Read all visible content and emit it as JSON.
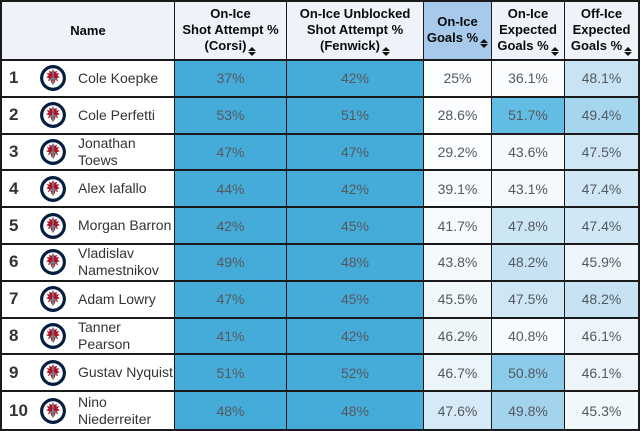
{
  "table": {
    "columns": [
      {
        "key": "name",
        "lines": [
          "Name"
        ],
        "sortable": false,
        "highlighted": false
      },
      {
        "key": "corsi",
        "lines": [
          "On-Ice",
          "Shot Attempt %",
          "(Corsi)"
        ],
        "sortable": true,
        "highlighted": false
      },
      {
        "key": "fenwick",
        "lines": [
          "On-Ice Unblocked",
          "Shot Attempt %",
          "(Fenwick)"
        ],
        "sortable": true,
        "highlighted": false
      },
      {
        "key": "goals",
        "lines": [
          "On-Ice",
          "Goals %"
        ],
        "sortable": true,
        "highlighted": true
      },
      {
        "key": "xgf-on",
        "lines": [
          "On-Ice",
          "Expected",
          "Goals %"
        ],
        "sortable": true,
        "highlighted": false
      },
      {
        "key": "xgf-off",
        "lines": [
          "Off-Ice",
          "Expected",
          "Goals %"
        ],
        "sortable": true,
        "highlighted": false
      }
    ],
    "icons": {
      "sort": "sort-arrows-icon",
      "team_logo": "winnipeg-jets-logo"
    },
    "colors": {
      "strong_blue": "#45acda",
      "header_bg": "#eff3f9",
      "header_highlight_bg": "#a6c9ec",
      "border": "#1a1a1a"
    },
    "rows": [
      {
        "rank": "1",
        "name": "Cole Koepke",
        "cells": [
          {
            "v": "37%",
            "bg": "#45acda"
          },
          {
            "v": "42%",
            "bg": "#45acda"
          },
          {
            "v": "25%",
            "bg": "#fcfdfe"
          },
          {
            "v": "36.1%",
            "bg": "#fafcfd"
          },
          {
            "v": "48.1%",
            "bg": "#c8e3f3"
          }
        ]
      },
      {
        "rank": "2",
        "name": "Cole Perfetti",
        "cells": [
          {
            "v": "53%",
            "bg": "#45acda"
          },
          {
            "v": "51%",
            "bg": "#45acda"
          },
          {
            "v": "28.6%",
            "bg": "#fcfdfe"
          },
          {
            "v": "51.7%",
            "bg": "#63bce3"
          },
          {
            "v": "49.4%",
            "bg": "#a6d5ee"
          }
        ]
      },
      {
        "rank": "3",
        "name": "Jonathan Toews",
        "cells": [
          {
            "v": "47%",
            "bg": "#45acda"
          },
          {
            "v": "47%",
            "bg": "#45acda"
          },
          {
            "v": "29.2%",
            "bg": "#fcfdfe"
          },
          {
            "v": "43.6%",
            "bg": "#f4f9fc"
          },
          {
            "v": "47.5%",
            "bg": "#cfe7f5"
          }
        ]
      },
      {
        "rank": "4",
        "name": "Alex Iafallo",
        "cells": [
          {
            "v": "44%",
            "bg": "#45acda"
          },
          {
            "v": "42%",
            "bg": "#45acda"
          },
          {
            "v": "39.1%",
            "bg": "#f8fbfd"
          },
          {
            "v": "43.1%",
            "bg": "#f5f9fc"
          },
          {
            "v": "47.4%",
            "bg": "#d0e8f5"
          }
        ]
      },
      {
        "rank": "5",
        "name": "Morgan Barron",
        "cells": [
          {
            "v": "42%",
            "bg": "#45acda"
          },
          {
            "v": "45%",
            "bg": "#45acda"
          },
          {
            "v": "41.7%",
            "bg": "#f6fafc"
          },
          {
            "v": "47.8%",
            "bg": "#cde6f4"
          },
          {
            "v": "47.4%",
            "bg": "#d0e8f5"
          }
        ]
      },
      {
        "rank": "6",
        "name": "Vladislav Namestnikov",
        "cells": [
          {
            "v": "49%",
            "bg": "#45acda"
          },
          {
            "v": "48%",
            "bg": "#45acda"
          },
          {
            "v": "43.8%",
            "bg": "#f4f9fc"
          },
          {
            "v": "48.2%",
            "bg": "#c7e3f3"
          },
          {
            "v": "45.9%",
            "bg": "#eff6fb"
          }
        ]
      },
      {
        "rank": "7",
        "name": "Adam Lowry",
        "cells": [
          {
            "v": "47%",
            "bg": "#45acda"
          },
          {
            "v": "45%",
            "bg": "#45acda"
          },
          {
            "v": "45.5%",
            "bg": "#f1f8fb"
          },
          {
            "v": "47.5%",
            "bg": "#cfe7f5"
          },
          {
            "v": "48.2%",
            "bg": "#c7e3f3"
          }
        ]
      },
      {
        "rank": "8",
        "name": "Tanner Pearson",
        "cells": [
          {
            "v": "41%",
            "bg": "#45acda"
          },
          {
            "v": "42%",
            "bg": "#45acda"
          },
          {
            "v": "46.2%",
            "bg": "#eef6fa"
          },
          {
            "v": "40.8%",
            "bg": "#f7fbfd"
          },
          {
            "v": "46.1%",
            "bg": "#edf5fa"
          }
        ]
      },
      {
        "rank": "9",
        "name": "Gustav Nyquist",
        "cells": [
          {
            "v": "51%",
            "bg": "#45acda"
          },
          {
            "v": "52%",
            "bg": "#45acda"
          },
          {
            "v": "46.7%",
            "bg": "#ecf5fa"
          },
          {
            "v": "50.8%",
            "bg": "#8ccbe9"
          },
          {
            "v": "46.1%",
            "bg": "#edf5fa"
          }
        ]
      },
      {
        "rank": "10",
        "name": "Nino Niederreiter",
        "cells": [
          {
            "v": "48%",
            "bg": "#45acda"
          },
          {
            "v": "48%",
            "bg": "#45acda"
          },
          {
            "v": "47.6%",
            "bg": "#d5eaf6"
          },
          {
            "v": "49.8%",
            "bg": "#a3d3ed"
          },
          {
            "v": "45.3%",
            "bg": "#f1f8fc"
          }
        ]
      }
    ]
  }
}
